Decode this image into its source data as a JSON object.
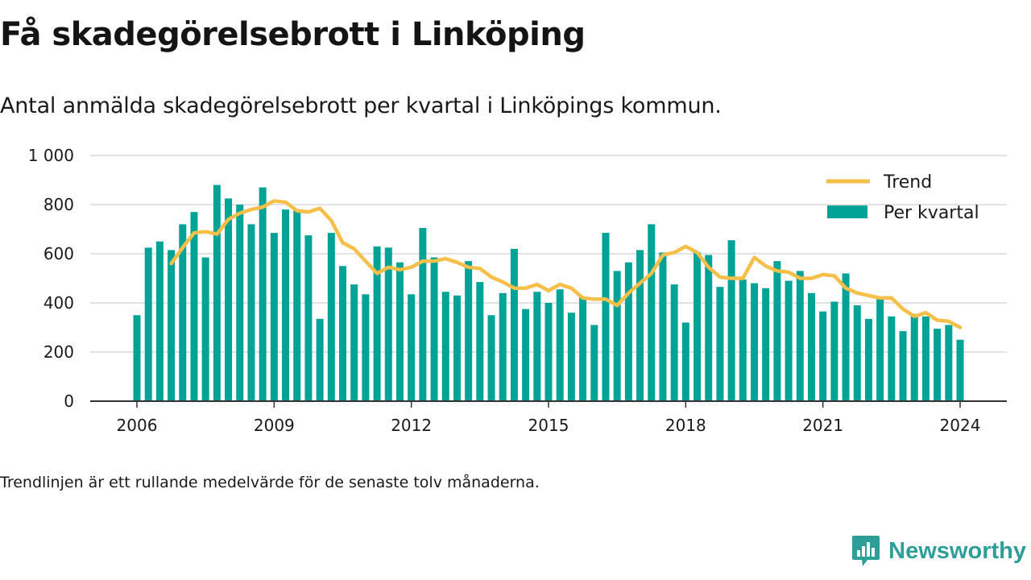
{
  "header": {
    "title": "Få skadegörelsebrott i Linköping",
    "subtitle": "Antal anmälda skadegörelsebrott per kvartal i Linköpings kommun."
  },
  "footnote": "Trendlinjen är ett rullande medelvärde för de senaste tolv månaderna.",
  "brand": {
    "name": "Newsworthy",
    "icon": "newsworthy-logo-icon"
  },
  "colors": {
    "bar": "#00a396",
    "trend": "#f6bf4a",
    "grid": "#d9d9d9",
    "axis": "#333333",
    "brand": "#2e9e98"
  },
  "chart_data": {
    "type": "bar",
    "title": "Få skadegörelsebrott i Linköping",
    "subtitle": "Antal anmälda skadegörelsebrott per kvartal i Linköpings kommun.",
    "xlabel": "",
    "ylabel": "",
    "ylim": [
      0,
      1000
    ],
    "yticks": [
      0,
      200,
      400,
      600,
      800,
      1000
    ],
    "ytick_labels": [
      "0",
      "200",
      "400",
      "600",
      "800",
      "1 000"
    ],
    "xticks": [
      2006,
      2009,
      2012,
      2015,
      2018,
      2021,
      2024
    ],
    "x_start": "2006Q1",
    "grid": true,
    "legend_position": "top-right",
    "series": [
      {
        "name": "Per kvartal",
        "type": "bar",
        "values": [
          350,
          625,
          650,
          615,
          720,
          770,
          585,
          880,
          825,
          800,
          720,
          870,
          685,
          780,
          775,
          675,
          335,
          685,
          550,
          475,
          435,
          630,
          625,
          565,
          435,
          705,
          585,
          445,
          430,
          570,
          485,
          350,
          440,
          620,
          375,
          445,
          400,
          455,
          360,
          425,
          310,
          685,
          530,
          565,
          615,
          720,
          605,
          475,
          320,
          605,
          595,
          465,
          655,
          495,
          480,
          460,
          570,
          490,
          530,
          440,
          365,
          405,
          520,
          390,
          335,
          425,
          345,
          285,
          355,
          345,
          295,
          310,
          250
        ]
      },
      {
        "name": "Trend",
        "type": "line",
        "values": [
          null,
          null,
          null,
          560,
          625,
          685,
          690,
          680,
          740,
          765,
          780,
          790,
          815,
          810,
          775,
          770,
          785,
          735,
          645,
          620,
          570,
          520,
          545,
          535,
          545,
          570,
          570,
          580,
          565,
          545,
          540,
          505,
          485,
          460,
          460,
          475,
          450,
          475,
          460,
          420,
          415,
          415,
          390,
          440,
          480,
          520,
          595,
          605,
          630,
          605,
          545,
          505,
          500,
          500,
          585,
          550,
          530,
          525,
          500,
          500,
          515,
          510,
          460,
          440,
          430,
          420,
          420,
          375,
          345,
          360,
          330,
          325,
          300
        ]
      }
    ]
  }
}
